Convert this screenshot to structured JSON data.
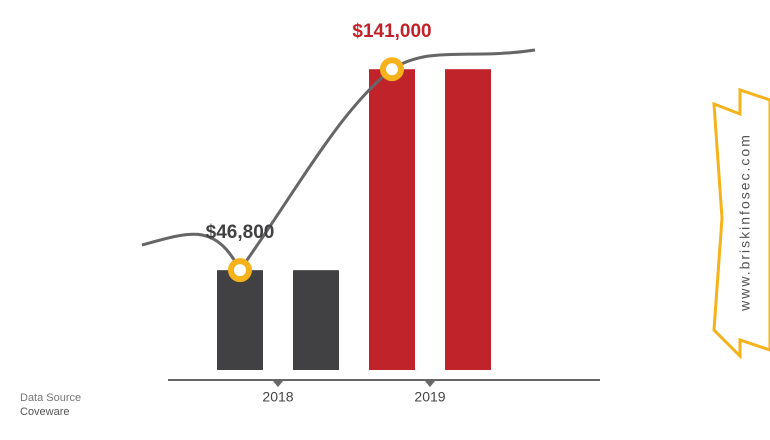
{
  "chart_data": {
    "type": "bar",
    "categories": [
      "2018",
      "2019"
    ],
    "values": [
      46800,
      141000
    ],
    "value_labels": [
      "$46,800",
      "$141,000"
    ],
    "colors": [
      "#414042",
      "#c1232b"
    ],
    "ylim": [
      0,
      150000
    ],
    "source_label": "Data Source",
    "source": "Coveware",
    "watermark": "www.briskinfosec.com"
  }
}
